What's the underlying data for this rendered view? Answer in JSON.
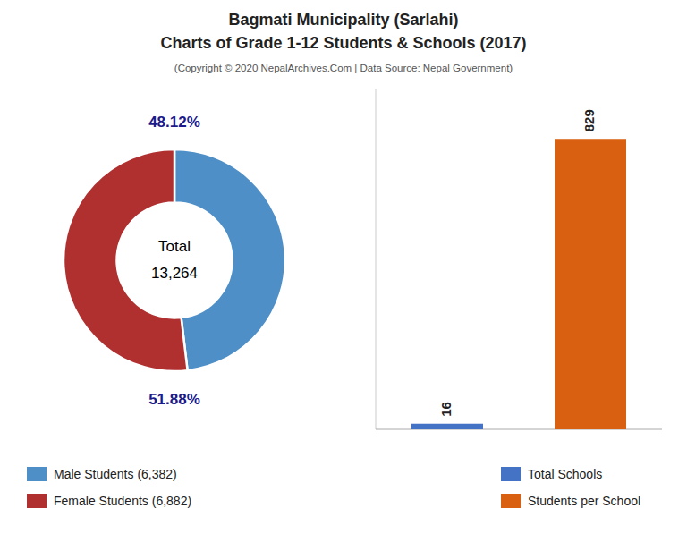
{
  "chart_data": [
    {
      "type": "pie",
      "title": "Bagmati Municipality (Sarlahi)\nCharts of Grade 1-12 Students & Schools (2017)",
      "subtitle": "(Copyright © 2020 NepalArchives.Com | Data Source: Nepal Government)",
      "categories": [
        "Male Students (6,382)",
        "Female Students (6,882)"
      ],
      "values": [
        48.12,
        51.88
      ],
      "value_labels": [
        "48.12%",
        "51.88%"
      ],
      "colors": [
        "#4e8fc7",
        "#b03030"
      ],
      "annotations": [
        "Total",
        "13,264"
      ],
      "data_labels": true,
      "legend": "bottom"
    },
    {
      "type": "bar",
      "categories": [
        "Total Schools",
        "Students per School"
      ],
      "values": [
        16,
        829
      ],
      "colors": [
        "#4472c4",
        "#d96010"
      ],
      "ylim": [
        0,
        970
      ],
      "tick_labels": false,
      "data_labels": true,
      "legend": "bottom"
    }
  ]
}
